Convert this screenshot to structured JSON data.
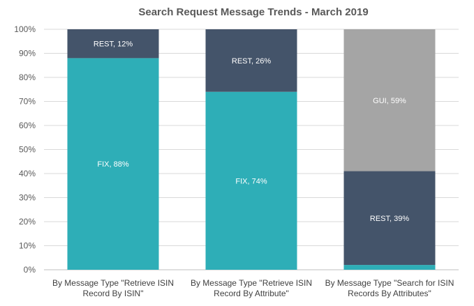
{
  "chart_data": {
    "type": "bar",
    "stacked": true,
    "title": "Search Request Message Trends - March 2019",
    "xlabel": "",
    "ylabel": "",
    "ylim": [
      0,
      100
    ],
    "yticks": [
      "0%",
      "10%",
      "20%",
      "30%",
      "40%",
      "50%",
      "60%",
      "70%",
      "80%",
      "90%",
      "100%"
    ],
    "grid": true,
    "legend": "none",
    "categories": [
      [
        "By Message Type \"Retrieve ISIN",
        "Record By ISIN\""
      ],
      [
        "By Message Type \"Retrieve ISIN",
        "Record By Attribute\""
      ],
      [
        "By Message Type \"Search for ISIN",
        "Records By Attributes\""
      ]
    ],
    "series": [
      {
        "key": "fix",
        "color": "#2eaeb7",
        "values": [
          88,
          74,
          2
        ],
        "labels": [
          "FIX, 88%",
          "FIX, 74%",
          ""
        ]
      },
      {
        "key": "rest",
        "color": "#44546a",
        "values": [
          12,
          26,
          39
        ],
        "labels": [
          "REST, 12%",
          "REST, 26%",
          "REST, 39%"
        ]
      },
      {
        "key": "gui",
        "color": "#a5a5a5",
        "values": [
          0,
          0,
          59
        ],
        "labels": [
          "",
          "",
          "GUI, 59%"
        ]
      }
    ]
  }
}
